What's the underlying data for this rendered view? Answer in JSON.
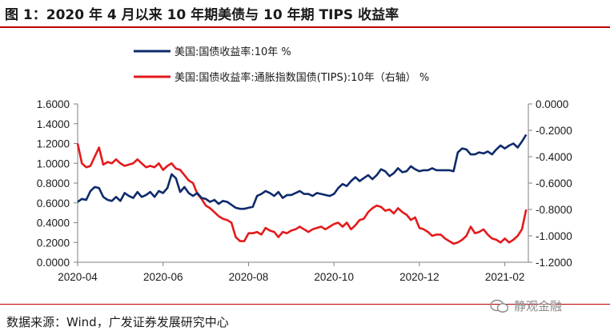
{
  "title": "图 1：2020 年 4 月以来 10 年期美债与 10 年期 TIPS 收益率",
  "source": "数据来源：Wind，广发证券发展研究中心",
  "watermark": "静观金融",
  "colors": {
    "series1": "#0e2a6b",
    "series2": "#e31a1c",
    "accent": "#c00000"
  },
  "chart_data": {
    "type": "line",
    "x_tick_labels": [
      "2020-04",
      "2020-06",
      "2020-08",
      "2020-10",
      "2020-12",
      "2021-02"
    ],
    "x_ticks_month_index": [
      0,
      2,
      4,
      6,
      8,
      10
    ],
    "x_range_month_index": [
      0,
      10.55
    ],
    "left_axis": {
      "ylim": [
        0,
        1.6
      ],
      "ticks": [
        0,
        0.2,
        0.4,
        0.6,
        0.8,
        1.0,
        1.2,
        1.4,
        1.6
      ],
      "tick_labels": [
        "0.0000",
        "0.2000",
        "0.4000",
        "0.6000",
        "0.8000",
        "1.0000",
        "1.2000",
        "1.4000",
        "1.6000"
      ]
    },
    "right_axis": {
      "ylim": [
        -1.2,
        0
      ],
      "ticks": [
        -1.2,
        -1.0,
        -0.8,
        -0.6,
        -0.4,
        -0.2,
        0
      ],
      "tick_labels": [
        "-1.2000",
        "-1.0000",
        "-0.8000",
        "-0.6000",
        "-0.4000",
        "-0.2000",
        "0.0000"
      ]
    },
    "series": [
      {
        "name": "美国:国债收益率:10年 %",
        "axis": "left",
        "x": [
          0,
          0.1,
          0.2,
          0.3,
          0.4,
          0.5,
          0.6,
          0.7,
          0.8,
          0.9,
          1.0,
          1.1,
          1.2,
          1.3,
          1.4,
          1.5,
          1.6,
          1.7,
          1.8,
          1.9,
          2.0,
          2.1,
          2.2,
          2.3,
          2.4,
          2.5,
          2.6,
          2.7,
          2.8,
          2.9,
          3.0,
          3.1,
          3.2,
          3.3,
          3.4,
          3.5,
          3.6,
          3.7,
          3.8,
          3.9,
          4.0,
          4.1,
          4.2,
          4.3,
          4.4,
          4.5,
          4.6,
          4.7,
          4.8,
          4.9,
          5.0,
          5.1,
          5.2,
          5.3,
          5.4,
          5.5,
          5.6,
          5.7,
          5.8,
          5.9,
          6.0,
          6.1,
          6.2,
          6.3,
          6.4,
          6.5,
          6.6,
          6.7,
          6.8,
          6.9,
          7.0,
          7.1,
          7.2,
          7.3,
          7.4,
          7.5,
          7.6,
          7.7,
          7.8,
          7.9,
          8.0,
          8.1,
          8.2,
          8.3,
          8.4,
          8.5,
          8.6,
          8.7,
          8.8,
          8.9,
          9.0,
          9.1,
          9.2,
          9.3,
          9.4,
          9.5,
          9.6,
          9.7,
          9.8,
          9.9,
          10.0,
          10.1,
          10.2,
          10.3,
          10.4,
          10.5
        ],
        "values": [
          0.61,
          0.64,
          0.63,
          0.72,
          0.76,
          0.75,
          0.66,
          0.63,
          0.62,
          0.66,
          0.62,
          0.7,
          0.67,
          0.65,
          0.71,
          0.66,
          0.68,
          0.71,
          0.66,
          0.72,
          0.7,
          0.75,
          0.89,
          0.85,
          0.71,
          0.76,
          0.7,
          0.67,
          0.7,
          0.65,
          0.64,
          0.61,
          0.63,
          0.59,
          0.62,
          0.61,
          0.58,
          0.55,
          0.54,
          0.54,
          0.55,
          0.56,
          0.67,
          0.69,
          0.72,
          0.7,
          0.67,
          0.71,
          0.65,
          0.68,
          0.68,
          0.7,
          0.72,
          0.69,
          0.69,
          0.67,
          0.7,
          0.69,
          0.68,
          0.67,
          0.69,
          0.75,
          0.79,
          0.77,
          0.82,
          0.86,
          0.82,
          0.85,
          0.88,
          0.84,
          0.88,
          0.94,
          0.92,
          0.87,
          0.9,
          0.95,
          0.91,
          0.92,
          0.97,
          0.94,
          0.92,
          0.93,
          0.93,
          0.95,
          0.93,
          0.93,
          0.93,
          0.93,
          0.92,
          1.11,
          1.15,
          1.14,
          1.09,
          1.09,
          1.11,
          1.1,
          1.12,
          1.09,
          1.14,
          1.18,
          1.15,
          1.18,
          1.2,
          1.16,
          1.22,
          1.29
        ]
      },
      {
        "name": "美国:国债收益率:通胀指数国债(TIPS):10年（右轴） %",
        "axis": "right",
        "x": [
          0,
          0.1,
          0.2,
          0.3,
          0.4,
          0.5,
          0.6,
          0.7,
          0.8,
          0.9,
          1.0,
          1.1,
          1.2,
          1.3,
          1.4,
          1.5,
          1.6,
          1.7,
          1.8,
          1.9,
          2.0,
          2.1,
          2.2,
          2.3,
          2.4,
          2.5,
          2.6,
          2.7,
          2.8,
          2.9,
          3.0,
          3.1,
          3.2,
          3.3,
          3.4,
          3.5,
          3.6,
          3.7,
          3.8,
          3.9,
          4.0,
          4.1,
          4.2,
          4.3,
          4.4,
          4.5,
          4.6,
          4.7,
          4.8,
          4.9,
          5.0,
          5.1,
          5.2,
          5.3,
          5.4,
          5.5,
          5.6,
          5.7,
          5.8,
          5.9,
          6.0,
          6.1,
          6.2,
          6.3,
          6.4,
          6.5,
          6.6,
          6.7,
          6.8,
          6.9,
          7.0,
          7.1,
          7.2,
          7.3,
          7.4,
          7.5,
          7.6,
          7.7,
          7.8,
          7.9,
          8.0,
          8.1,
          8.2,
          8.3,
          8.4,
          8.5,
          8.6,
          8.7,
          8.8,
          8.9,
          9.0,
          9.1,
          9.2,
          9.3,
          9.4,
          9.5,
          9.6,
          9.7,
          9.8,
          9.9,
          10.0,
          10.1,
          10.2,
          10.3,
          10.4,
          10.5
        ],
        "values": [
          -0.3,
          -0.45,
          -0.48,
          -0.47,
          -0.4,
          -0.33,
          -0.46,
          -0.44,
          -0.45,
          -0.42,
          -0.45,
          -0.47,
          -0.46,
          -0.45,
          -0.42,
          -0.45,
          -0.48,
          -0.47,
          -0.48,
          -0.45,
          -0.5,
          -0.47,
          -0.45,
          -0.49,
          -0.5,
          -0.54,
          -0.58,
          -0.6,
          -0.68,
          -0.72,
          -0.77,
          -0.79,
          -0.82,
          -0.85,
          -0.87,
          -0.88,
          -0.9,
          -1.01,
          -1.04,
          -1.04,
          -0.98,
          -0.98,
          -0.97,
          -0.99,
          -0.94,
          -0.96,
          -0.97,
          -1.01,
          -0.97,
          -0.98,
          -0.96,
          -0.95,
          -0.93,
          -0.95,
          -0.97,
          -0.95,
          -0.94,
          -0.93,
          -0.95,
          -0.93,
          -0.91,
          -0.9,
          -0.93,
          -0.9,
          -0.95,
          -0.92,
          -0.88,
          -0.87,
          -0.82,
          -0.79,
          -0.77,
          -0.78,
          -0.81,
          -0.8,
          -0.83,
          -0.79,
          -0.82,
          -0.84,
          -0.88,
          -0.86,
          -0.94,
          -0.95,
          -0.97,
          -1.0,
          -0.99,
          -0.99,
          -1.02,
          -1.04,
          -1.06,
          -1.05,
          -1.03,
          -1.0,
          -0.93,
          -0.98,
          -0.97,
          -0.95,
          -0.99,
          -1.02,
          -1.03,
          -1.05,
          -1.02,
          -1.05,
          -1.03,
          -1.0,
          -0.95,
          -0.8
        ]
      }
    ]
  }
}
